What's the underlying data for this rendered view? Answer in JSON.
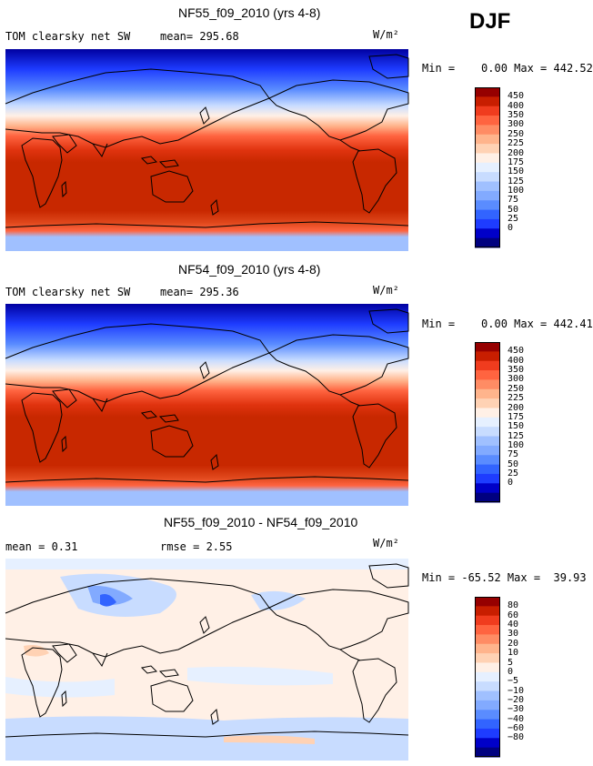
{
  "season": "DJF",
  "panels": [
    {
      "title": "NF55_f09_2010 (yrs 4-8)",
      "variable": "TOM clearsky net SW",
      "mean_text": "mean= 295.68",
      "units_text": "W/m²",
      "minmax_text": "Min =    0.00 Max = 442.52",
      "colorbar": {
        "colors": [
          "#000080",
          "#0000c8",
          "#1e3cff",
          "#3264ff",
          "#5a8cff",
          "#82aaff",
          "#a0c0ff",
          "#c8dcff",
          "#e6f0ff",
          "#fff0e6",
          "#ffd2b4",
          "#ffb48c",
          "#ff8c64",
          "#ff6440",
          "#f03c1e",
          "#c81e00",
          "#960000"
        ],
        "labels": [
          "450",
          "400",
          "350",
          "300",
          "250",
          "225",
          "200",
          "175",
          "150",
          "125",
          "100",
          "75",
          "50",
          "25",
          "0"
        ]
      }
    },
    {
      "title": "NF54_f09_2010 (yrs 4-8)",
      "variable": "TOM clearsky net SW",
      "mean_text": "mean= 295.36",
      "units_text": "W/m²",
      "minmax_text": "Min =    0.00 Max = 442.41",
      "colorbar": {
        "colors": [
          "#000080",
          "#0000c8",
          "#1e3cff",
          "#3264ff",
          "#5a8cff",
          "#82aaff",
          "#a0c0ff",
          "#c8dcff",
          "#e6f0ff",
          "#fff0e6",
          "#ffd2b4",
          "#ffb48c",
          "#ff8c64",
          "#ff6440",
          "#f03c1e",
          "#c81e00",
          "#960000"
        ],
        "labels": [
          "450",
          "400",
          "350",
          "300",
          "250",
          "225",
          "200",
          "175",
          "150",
          "125",
          "100",
          "75",
          "50",
          "25",
          "0"
        ]
      }
    },
    {
      "title": "NF55_f09_2010 - NF54_f09_2010",
      "mean_text": "mean =   0.31",
      "rmse_text": "rmse =   2.55",
      "units_text": "W/m²",
      "minmax_text": "Min = -65.52 Max =  39.93",
      "colorbar": {
        "colors": [
          "#000080",
          "#0000c8",
          "#1e3cff",
          "#3264ff",
          "#5a8cff",
          "#82aaff",
          "#a0c0ff",
          "#c8dcff",
          "#e6f0ff",
          "#fff0e6",
          "#ffd2b4",
          "#ffb48c",
          "#ff8c64",
          "#ff6440",
          "#f03c1e",
          "#c81e00",
          "#960000"
        ],
        "labels": [
          "80",
          "60",
          "40",
          "30",
          "20",
          "10",
          "5",
          "0",
          "−5",
          "−10",
          "−20",
          "−30",
          "−40",
          "−60",
          "−80"
        ]
      }
    }
  ]
}
